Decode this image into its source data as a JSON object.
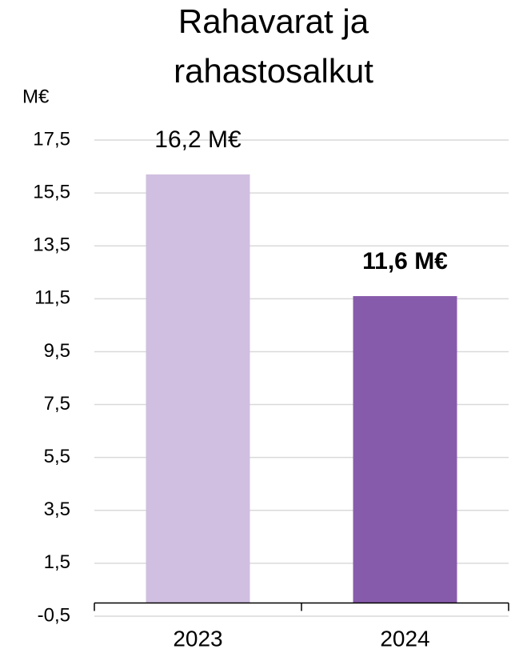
{
  "chart_data": {
    "type": "bar",
    "title": [
      "Rahavarat ja",
      "rahastosalkut"
    ],
    "y_axis_label": "M€",
    "categories": [
      "2023",
      "2024"
    ],
    "values": [
      16.2,
      11.6
    ],
    "value_labels": [
      "16,2 M€",
      "11,6 M€"
    ],
    "bold_labels": [
      false,
      true
    ],
    "colors": [
      "#d0bfe0",
      "#875bab"
    ],
    "ylim": [
      -0.5,
      17.5
    ],
    "yticks": [
      {
        "value": -0.5,
        "label": "-0,5"
      },
      {
        "value": 1.5,
        "label": "1,5"
      },
      {
        "value": 3.5,
        "label": "3,5"
      },
      {
        "value": 5.5,
        "label": "5,5"
      },
      {
        "value": 7.5,
        "label": "7,5"
      },
      {
        "value": 9.5,
        "label": "9,5"
      },
      {
        "value": 11.5,
        "label": "11,5"
      },
      {
        "value": 13.5,
        "label": "13,5"
      },
      {
        "value": 15.5,
        "label": "15,5"
      },
      {
        "value": 17.5,
        "label": "17,5"
      }
    ],
    "grid": true
  }
}
